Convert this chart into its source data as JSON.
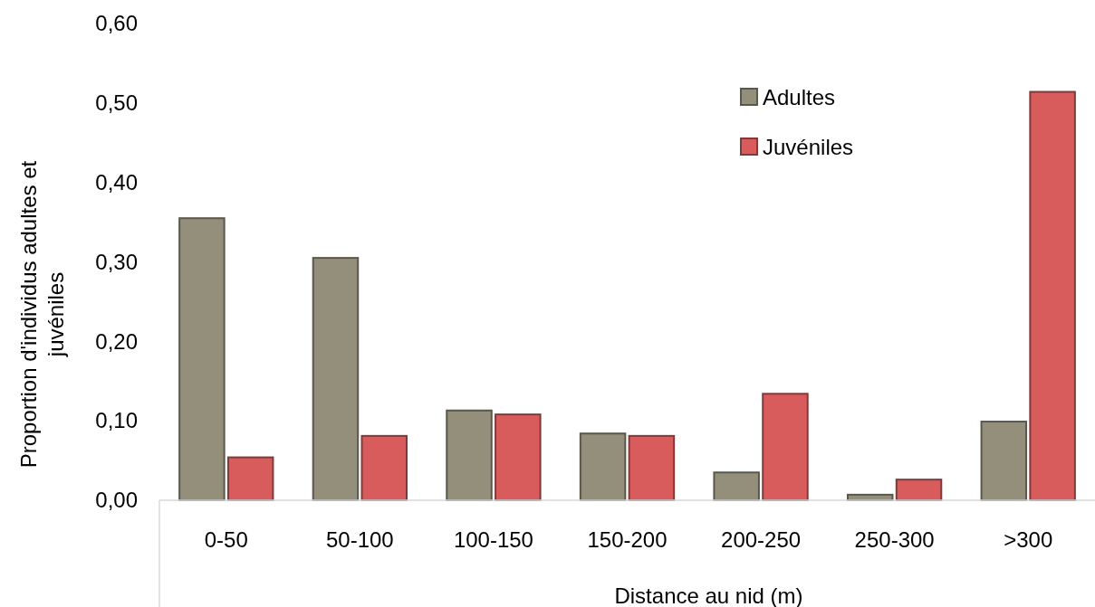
{
  "chart_data": {
    "type": "bar",
    "xlabel": "Distance au nid (m)",
    "ylabel": "Proportion d'individus adultes et juvéniles",
    "categories": [
      "0-50",
      "50-100",
      "100-150",
      "150-200",
      "200-250",
      "250-300",
      ">300"
    ],
    "series": [
      {
        "name": "Adultes",
        "color": "#948f7b",
        "values": [
          0.355,
          0.305,
          0.113,
          0.084,
          0.035,
          0.007,
          0.099
        ]
      },
      {
        "name": "Juvéniles",
        "color": "#d95c5c",
        "values": [
          0.054,
          0.081,
          0.108,
          0.081,
          0.134,
          0.026,
          0.514
        ]
      }
    ],
    "ylim": [
      0,
      0.6
    ],
    "yticks": [
      {
        "value": 0,
        "label": "0,00"
      },
      {
        "value": 0.1,
        "label": "0,10"
      },
      {
        "value": 0.2,
        "label": "0,20"
      },
      {
        "value": 0.3,
        "label": "0,30"
      },
      {
        "value": 0.4,
        "label": "0,40"
      },
      {
        "value": 0.5,
        "label": "0,50"
      },
      {
        "value": 0.6,
        "label": "0,60"
      }
    ],
    "grid": false,
    "legend": "top right"
  }
}
